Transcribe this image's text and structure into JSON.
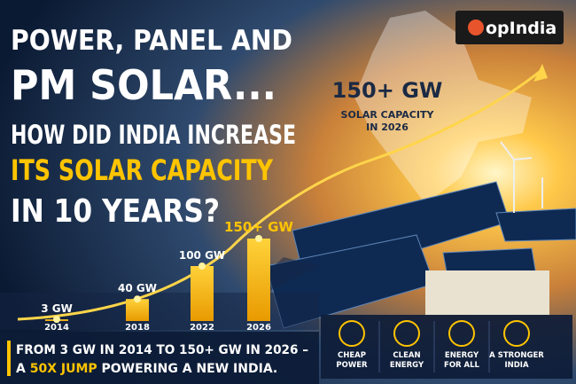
{
  "logo": "opIndia",
  "headline": {
    "line1": "POWER, PANEL AND",
    "line2": "PM SOLAR...",
    "line3": "HOW DID INDIA INCREASE",
    "line4": "ITS SOLAR CAPACITY",
    "line5": "IN 10 YEARS?"
  },
  "callout": {
    "value": "150+ GW",
    "line1": "SOLAR CAPACITY",
    "line2": "IN 2026"
  },
  "chart_data": {
    "type": "bar",
    "categories": [
      "2014",
      "2018",
      "2022",
      "2026"
    ],
    "values": [
      3,
      40,
      100,
      150
    ],
    "value_labels": [
      "3 GW",
      "40 GW",
      "100 GW",
      "150+ GW"
    ],
    "color": "#f5b400"
  },
  "footer": {
    "line1": "FROM 3 GW IN 2014 TO 150+ GW IN 2026 –",
    "prefix": "A",
    "highlight": "50X JUMP",
    "suffix": "POWERING A NEW INDIA."
  },
  "benefits": [
    [
      "CHEAP",
      "POWER"
    ],
    [
      "CLEAN",
      "ENERGY"
    ],
    [
      "ENERGY",
      "FOR ALL"
    ],
    [
      "A STRONGER",
      "INDIA"
    ]
  ]
}
